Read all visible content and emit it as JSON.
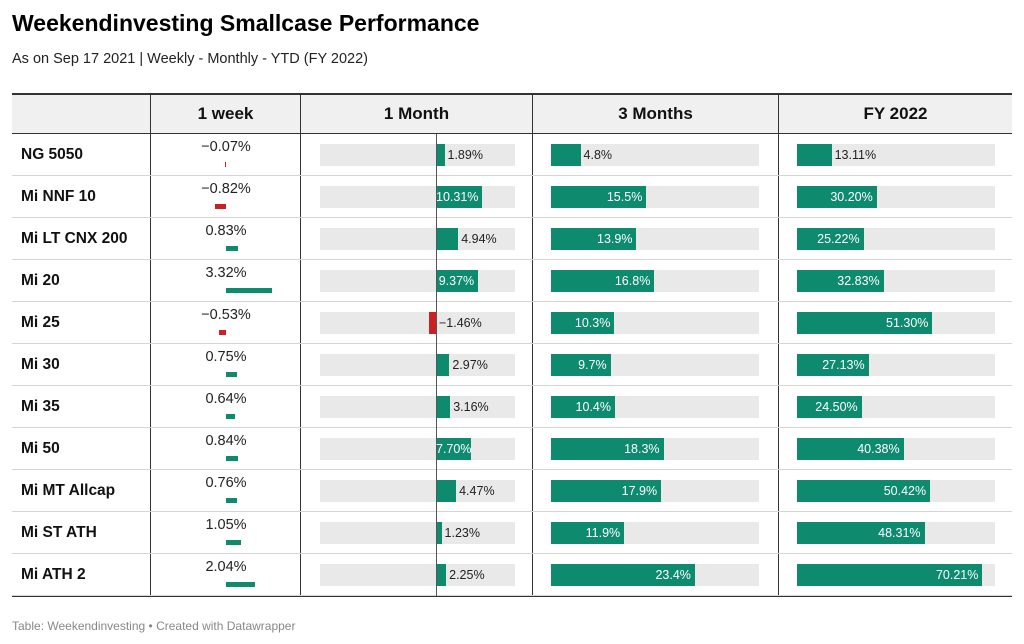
{
  "title": "Weekendinvesting Smallcase Performance",
  "subtitle": "As on Sep 17 2021 | Weekly - Monthly - YTD (FY 2022)",
  "footer": "Table: Weekendinvesting • Created with Datawrapper",
  "colors": {
    "positive": "#0e8b6f",
    "negative": "#c92222",
    "track": "#e9e9e9"
  },
  "chart_data": {
    "type": "table",
    "columns": [
      "",
      "1 week",
      "1 Month",
      "3 Months",
      "FY 2022"
    ],
    "rows": [
      {
        "name": "NG 5050",
        "week": -0.07,
        "week_label": "−0.07%",
        "m1": 1.89,
        "m1_label": "1.89%",
        "m3": 4.8,
        "m3_label": "4.8%",
        "fy": 13.11,
        "fy_label": "13.11%"
      },
      {
        "name": "Mi NNF 10",
        "week": -0.82,
        "week_label": "−0.82%",
        "m1": 10.31,
        "m1_label": "10.31%",
        "m3": 15.5,
        "m3_label": "15.5%",
        "fy": 30.2,
        "fy_label": "30.20%"
      },
      {
        "name": "Mi LT CNX 200",
        "week": 0.83,
        "week_label": "0.83%",
        "m1": 4.94,
        "m1_label": "4.94%",
        "m3": 13.9,
        "m3_label": "13.9%",
        "fy": 25.22,
        "fy_label": "25.22%"
      },
      {
        "name": "Mi 20",
        "week": 3.32,
        "week_label": "3.32%",
        "m1": 9.37,
        "m1_label": "9.37%",
        "m3": 16.8,
        "m3_label": "16.8%",
        "fy": 32.83,
        "fy_label": "32.83%"
      },
      {
        "name": "Mi 25",
        "week": -0.53,
        "week_label": "−0.53%",
        "m1": -1.46,
        "m1_label": "−1.46%",
        "m3": 10.3,
        "m3_label": "10.3%",
        "fy": 51.3,
        "fy_label": "51.30%"
      },
      {
        "name": "Mi 30",
        "week": 0.75,
        "week_label": "0.75%",
        "m1": 2.97,
        "m1_label": "2.97%",
        "m3": 9.7,
        "m3_label": "9.7%",
        "fy": 27.13,
        "fy_label": "27.13%"
      },
      {
        "name": "Mi 35",
        "week": 0.64,
        "week_label": "0.64%",
        "m1": 3.16,
        "m1_label": "3.16%",
        "m3": 10.4,
        "m3_label": "10.4%",
        "fy": 24.5,
        "fy_label": "24.50%"
      },
      {
        "name": "Mi 50",
        "week": 0.84,
        "week_label": "0.84%",
        "m1": 7.7,
        "m1_label": "7.70%",
        "m3": 18.3,
        "m3_label": "18.3%",
        "fy": 40.38,
        "fy_label": "40.38%"
      },
      {
        "name": "Mi MT Allcap",
        "week": 0.76,
        "week_label": "0.76%",
        "m1": 4.47,
        "m1_label": "4.47%",
        "m3": 17.9,
        "m3_label": "17.9%",
        "fy": 50.42,
        "fy_label": "50.42%"
      },
      {
        "name": "Mi ST ATH",
        "week": 1.05,
        "week_label": "1.05%",
        "m1": 1.23,
        "m1_label": "1.23%",
        "m3": 11.9,
        "m3_label": "11.9%",
        "fy": 48.31,
        "fy_label": "48.31%"
      },
      {
        "name": "Mi ATH 2",
        "week": 2.04,
        "week_label": "2.04%",
        "m1": 2.25,
        "m1_label": "2.25%",
        "m3": 23.4,
        "m3_label": "23.4%",
        "fy": 70.21,
        "fy_label": "70.21%"
      }
    ]
  }
}
